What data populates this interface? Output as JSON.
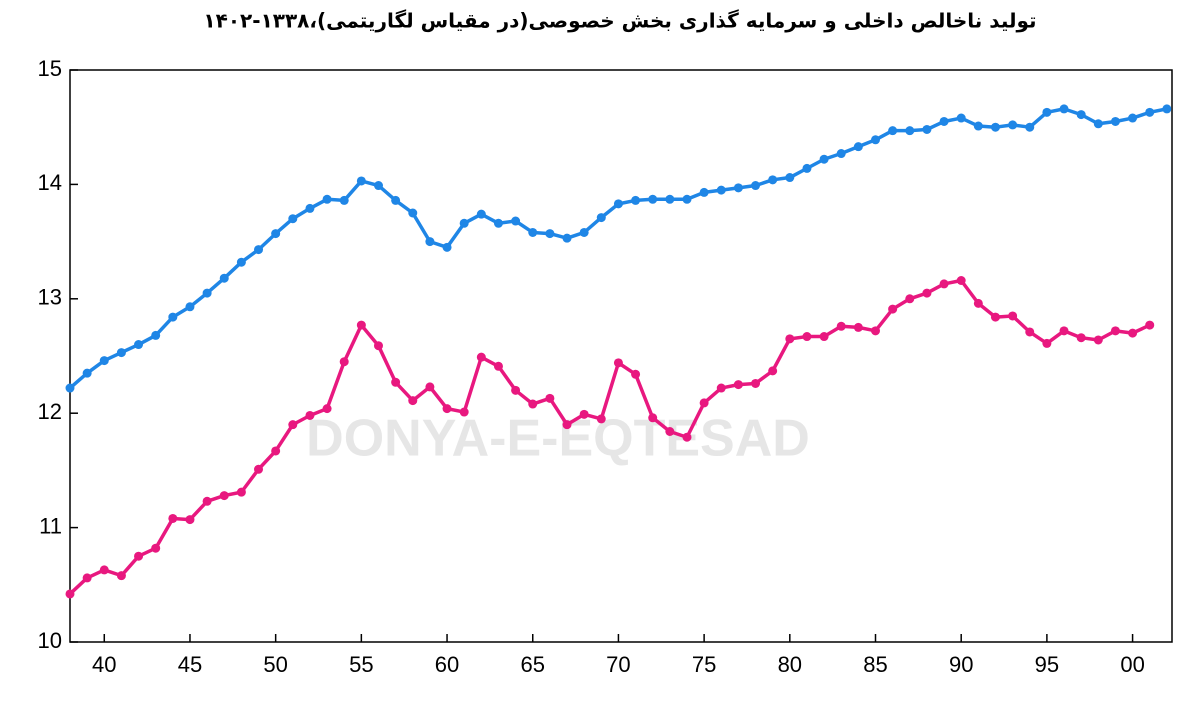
{
  "chart_data": {
    "type": "line",
    "title": "تولید ناخالص داخلی و سرمایه گذاری بخش خصوصی(در مقیاس لگاریتمی)،۱۳۳۸-۱۴۰۲",
    "watermark": "DONYA-E-EQTESAD",
    "x": [
      1338,
      1339,
      1340,
      1341,
      1342,
      1343,
      1344,
      1345,
      1346,
      1347,
      1348,
      1349,
      1350,
      1351,
      1352,
      1353,
      1354,
      1355,
      1356,
      1357,
      1358,
      1359,
      1360,
      1361,
      1362,
      1363,
      1364,
      1365,
      1366,
      1367,
      1368,
      1369,
      1370,
      1371,
      1372,
      1373,
      1374,
      1375,
      1376,
      1377,
      1378,
      1379,
      1380,
      1381,
      1382,
      1383,
      1384,
      1385,
      1386,
      1387,
      1388,
      1389,
      1390,
      1391,
      1392,
      1393,
      1394,
      1395,
      1396,
      1397,
      1398,
      1399,
      1400,
      1401,
      1402
    ],
    "series": [
      {
        "color": "#1f86e6",
        "values": [
          12.22,
          12.35,
          12.46,
          12.53,
          12.6,
          12.68,
          12.84,
          12.93,
          13.05,
          13.18,
          13.32,
          13.43,
          13.57,
          13.7,
          13.79,
          13.87,
          13.86,
          14.03,
          13.99,
          13.86,
          13.75,
          13.5,
          13.45,
          13.66,
          13.74,
          13.66,
          13.68,
          13.58,
          13.57,
          13.53,
          13.58,
          13.71,
          13.83,
          13.86,
          13.87,
          13.87,
          13.87,
          13.93,
          13.95,
          13.97,
          13.99,
          14.04,
          14.06,
          14.14,
          14.22,
          14.27,
          14.33,
          14.39,
          14.47,
          14.47,
          14.48,
          14.55,
          14.58,
          14.51,
          14.5,
          14.52,
          14.5,
          14.63,
          14.66,
          14.61,
          14.53,
          14.55,
          14.58,
          14.63,
          14.66
        ]
      },
      {
        "color": "#e8187f",
        "values": [
          10.42,
          10.56,
          10.63,
          10.58,
          10.75,
          10.82,
          11.08,
          11.07,
          11.23,
          11.28,
          11.31,
          11.51,
          11.67,
          11.9,
          11.98,
          12.04,
          12.45,
          12.77,
          12.59,
          12.27,
          12.11,
          12.23,
          12.04,
          12.01,
          12.49,
          12.41,
          12.2,
          12.08,
          12.13,
          11.9,
          11.99,
          11.95,
          12.44,
          12.34,
          11.96,
          11.84,
          11.79,
          12.09,
          12.22,
          12.25,
          12.26,
          12.37,
          12.65,
          12.67,
          12.67,
          12.76,
          12.75,
          12.72,
          12.91,
          13.0,
          13.05,
          13.13,
          13.16,
          12.96,
          12.84,
          12.85,
          12.71,
          12.61,
          12.72,
          12.66,
          12.64,
          12.72,
          12.7,
          12.77,
          null
        ]
      }
    ],
    "xlim": [
      1338,
      1402.3
    ],
    "xticks": [
      {
        "value": 1340,
        "label": "40"
      },
      {
        "value": 1345,
        "label": "45"
      },
      {
        "value": 1350,
        "label": "50"
      },
      {
        "value": 1355,
        "label": "55"
      },
      {
        "value": 1360,
        "label": "60"
      },
      {
        "value": 1365,
        "label": "65"
      },
      {
        "value": 1370,
        "label": "70"
      },
      {
        "value": 1375,
        "label": "75"
      },
      {
        "value": 1380,
        "label": "80"
      },
      {
        "value": 1385,
        "label": "85"
      },
      {
        "value": 1390,
        "label": "90"
      },
      {
        "value": 1395,
        "label": "95"
      },
      {
        "value": 1400,
        "label": "00"
      }
    ],
    "ylim": [
      10,
      15
    ],
    "yticks": [
      10,
      11,
      12,
      13,
      14,
      15
    ]
  }
}
